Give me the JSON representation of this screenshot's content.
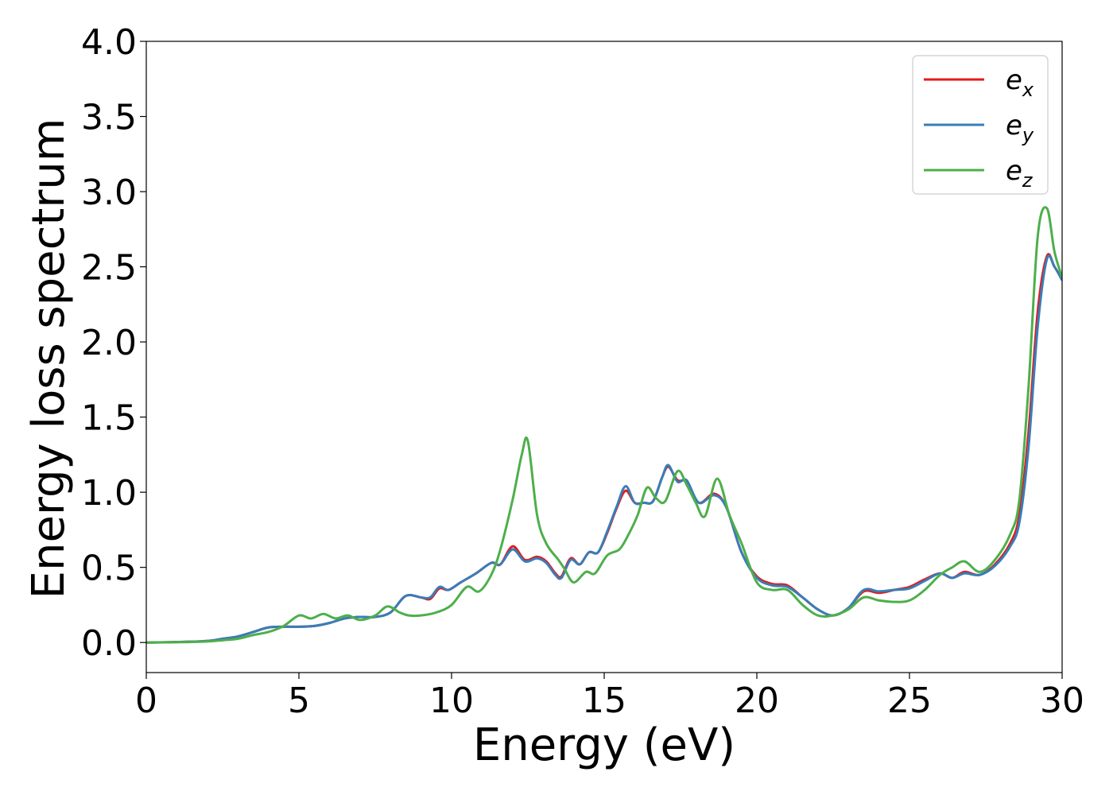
{
  "chart_data": {
    "type": "line",
    "title": "",
    "xlabel": "Energy (eV)",
    "ylabel": "Energy loss spectrum",
    "xlim": [
      0,
      30
    ],
    "ylim": [
      -0.2,
      4.0
    ],
    "xticks": [
      0,
      5,
      10,
      15,
      20,
      25,
      30
    ],
    "yticks": [
      0.0,
      0.5,
      1.0,
      1.5,
      2.0,
      2.5,
      3.0,
      3.5,
      4.0
    ],
    "xtick_labels": [
      "0",
      "5",
      "10",
      "15",
      "20",
      "25",
      "30"
    ],
    "ytick_labels": [
      "0.0",
      "0.5",
      "1.0",
      "1.5",
      "2.0",
      "2.5",
      "3.0",
      "3.5",
      "4.0"
    ],
    "grid": false,
    "legend_position": "top-right",
    "series": [
      {
        "name": "e",
        "subscript": "x",
        "color": "#e41a1c",
        "points": [
          [
            0,
            0
          ],
          [
            1,
            0.003
          ],
          [
            2,
            0.01
          ],
          [
            2.5,
            0.025
          ],
          [
            3,
            0.04
          ],
          [
            3.5,
            0.07
          ],
          [
            4,
            0.1
          ],
          [
            4.5,
            0.105
          ],
          [
            5,
            0.105
          ],
          [
            5.5,
            0.11
          ],
          [
            6,
            0.13
          ],
          [
            6.5,
            0.16
          ],
          [
            7,
            0.17
          ],
          [
            7.5,
            0.17
          ],
          [
            8,
            0.2
          ],
          [
            8.5,
            0.31
          ],
          [
            9,
            0.3
          ],
          [
            9.3,
            0.29
          ],
          [
            9.6,
            0.36
          ],
          [
            9.9,
            0.35
          ],
          [
            10.3,
            0.4
          ],
          [
            10.8,
            0.46
          ],
          [
            11.3,
            0.53
          ],
          [
            11.6,
            0.52
          ],
          [
            12,
            0.64
          ],
          [
            12.4,
            0.55
          ],
          [
            12.8,
            0.57
          ],
          [
            13.1,
            0.54
          ],
          [
            13.4,
            0.46
          ],
          [
            13.6,
            0.44
          ],
          [
            13.9,
            0.56
          ],
          [
            14.2,
            0.52
          ],
          [
            14.5,
            0.6
          ],
          [
            14.8,
            0.6
          ],
          [
            15.1,
            0.73
          ],
          [
            15.4,
            0.89
          ],
          [
            15.7,
            1.01
          ],
          [
            16,
            0.93
          ],
          [
            16.3,
            0.93
          ],
          [
            16.6,
            0.94
          ],
          [
            16.9,
            1.1
          ],
          [
            17.1,
            1.17
          ],
          [
            17.4,
            1.08
          ],
          [
            17.7,
            1.07
          ],
          [
            18.1,
            0.93
          ],
          [
            18.6,
            0.99
          ],
          [
            19,
            0.9
          ],
          [
            19.5,
            0.6
          ],
          [
            20,
            0.44
          ],
          [
            20.5,
            0.39
          ],
          [
            21,
            0.38
          ],
          [
            21.5,
            0.3
          ],
          [
            22,
            0.22
          ],
          [
            22.5,
            0.18
          ],
          [
            23,
            0.23
          ],
          [
            23.5,
            0.34
          ],
          [
            24,
            0.33
          ],
          [
            24.5,
            0.35
          ],
          [
            25,
            0.37
          ],
          [
            25.5,
            0.42
          ],
          [
            26,
            0.46
          ],
          [
            26.4,
            0.43
          ],
          [
            26.8,
            0.47
          ],
          [
            27.3,
            0.45
          ],
          [
            27.8,
            0.52
          ],
          [
            28.3,
            0.66
          ],
          [
            28.6,
            0.85
          ],
          [
            28.9,
            1.4
          ],
          [
            29.2,
            2.2
          ],
          [
            29.5,
            2.57
          ],
          [
            29.75,
            2.5
          ],
          [
            30,
            2.42
          ]
        ]
      },
      {
        "name": "e",
        "subscript": "y",
        "color": "#377eb8",
        "points": [
          [
            0,
            0
          ],
          [
            1,
            0.003
          ],
          [
            2,
            0.01
          ],
          [
            2.5,
            0.025
          ],
          [
            3,
            0.04
          ],
          [
            3.5,
            0.07
          ],
          [
            4,
            0.1
          ],
          [
            4.5,
            0.105
          ],
          [
            5,
            0.105
          ],
          [
            5.5,
            0.11
          ],
          [
            6,
            0.13
          ],
          [
            6.5,
            0.16
          ],
          [
            7,
            0.17
          ],
          [
            7.5,
            0.17
          ],
          [
            8,
            0.2
          ],
          [
            8.5,
            0.31
          ],
          [
            9,
            0.3
          ],
          [
            9.3,
            0.3
          ],
          [
            9.6,
            0.37
          ],
          [
            9.9,
            0.35
          ],
          [
            10.3,
            0.4
          ],
          [
            10.8,
            0.46
          ],
          [
            11.3,
            0.53
          ],
          [
            11.6,
            0.52
          ],
          [
            12,
            0.62
          ],
          [
            12.4,
            0.54
          ],
          [
            12.8,
            0.56
          ],
          [
            13.1,
            0.53
          ],
          [
            13.4,
            0.45
          ],
          [
            13.6,
            0.43
          ],
          [
            13.9,
            0.55
          ],
          [
            14.2,
            0.52
          ],
          [
            14.5,
            0.6
          ],
          [
            14.8,
            0.6
          ],
          [
            15.1,
            0.74
          ],
          [
            15.4,
            0.9
          ],
          [
            15.7,
            1.04
          ],
          [
            16,
            0.93
          ],
          [
            16.3,
            0.93
          ],
          [
            16.6,
            0.94
          ],
          [
            16.9,
            1.1
          ],
          [
            17.1,
            1.18
          ],
          [
            17.4,
            1.07
          ],
          [
            17.7,
            1.08
          ],
          [
            18.1,
            0.93
          ],
          [
            18.6,
            0.98
          ],
          [
            19,
            0.9
          ],
          [
            19.5,
            0.6
          ],
          [
            20,
            0.43
          ],
          [
            20.5,
            0.38
          ],
          [
            21,
            0.37
          ],
          [
            21.5,
            0.3
          ],
          [
            22,
            0.22
          ],
          [
            22.5,
            0.18
          ],
          [
            23,
            0.23
          ],
          [
            23.5,
            0.35
          ],
          [
            24,
            0.34
          ],
          [
            24.5,
            0.35
          ],
          [
            25,
            0.36
          ],
          [
            25.5,
            0.41
          ],
          [
            26,
            0.46
          ],
          [
            26.4,
            0.43
          ],
          [
            26.8,
            0.46
          ],
          [
            27.3,
            0.45
          ],
          [
            27.8,
            0.51
          ],
          [
            28.3,
            0.64
          ],
          [
            28.6,
            0.8
          ],
          [
            28.9,
            1.3
          ],
          [
            29.2,
            2.1
          ],
          [
            29.5,
            2.55
          ],
          [
            29.75,
            2.5
          ],
          [
            30,
            2.41
          ]
        ]
      },
      {
        "name": "e",
        "subscript": "z",
        "color": "#4daf4a",
        "points": [
          [
            0,
            0
          ],
          [
            1,
            0.002
          ],
          [
            2,
            0.007
          ],
          [
            2.5,
            0.015
          ],
          [
            3,
            0.025
          ],
          [
            3.5,
            0.05
          ],
          [
            4,
            0.07
          ],
          [
            4.5,
            0.11
          ],
          [
            5,
            0.18
          ],
          [
            5.4,
            0.16
          ],
          [
            5.8,
            0.19
          ],
          [
            6.2,
            0.16
          ],
          [
            6.6,
            0.18
          ],
          [
            7,
            0.15
          ],
          [
            7.5,
            0.18
          ],
          [
            7.9,
            0.24
          ],
          [
            8.3,
            0.2
          ],
          [
            8.6,
            0.18
          ],
          [
            9,
            0.18
          ],
          [
            9.5,
            0.2
          ],
          [
            10,
            0.25
          ],
          [
            10.5,
            0.37
          ],
          [
            10.9,
            0.34
          ],
          [
            11.3,
            0.45
          ],
          [
            11.6,
            0.62
          ],
          [
            12,
            0.95
          ],
          [
            12.3,
            1.25
          ],
          [
            12.5,
            1.34
          ],
          [
            12.8,
            0.85
          ],
          [
            13.1,
            0.66
          ],
          [
            13.5,
            0.55
          ],
          [
            13.7,
            0.49
          ],
          [
            14,
            0.4
          ],
          [
            14.4,
            0.47
          ],
          [
            14.7,
            0.46
          ],
          [
            15.1,
            0.58
          ],
          [
            15.5,
            0.62
          ],
          [
            15.8,
            0.72
          ],
          [
            16.1,
            0.85
          ],
          [
            16.4,
            1.03
          ],
          [
            16.7,
            0.96
          ],
          [
            17,
            0.94
          ],
          [
            17.4,
            1.14
          ],
          [
            17.7,
            1.05
          ],
          [
            18,
            0.93
          ],
          [
            18.3,
            0.84
          ],
          [
            18.7,
            1.09
          ],
          [
            19.1,
            0.85
          ],
          [
            19.5,
            0.66
          ],
          [
            20,
            0.4
          ],
          [
            20.5,
            0.35
          ],
          [
            21,
            0.35
          ],
          [
            21.5,
            0.25
          ],
          [
            22,
            0.18
          ],
          [
            22.5,
            0.18
          ],
          [
            23,
            0.22
          ],
          [
            23.5,
            0.3
          ],
          [
            24,
            0.28
          ],
          [
            24.5,
            0.27
          ],
          [
            25,
            0.28
          ],
          [
            25.5,
            0.35
          ],
          [
            26,
            0.45
          ],
          [
            26.4,
            0.5
          ],
          [
            26.8,
            0.54
          ],
          [
            27.3,
            0.47
          ],
          [
            27.8,
            0.55
          ],
          [
            28.3,
            0.72
          ],
          [
            28.6,
            0.95
          ],
          [
            28.9,
            1.7
          ],
          [
            29.2,
            2.7
          ],
          [
            29.5,
            2.89
          ],
          [
            29.75,
            2.6
          ],
          [
            30,
            2.43
          ]
        ]
      }
    ]
  }
}
